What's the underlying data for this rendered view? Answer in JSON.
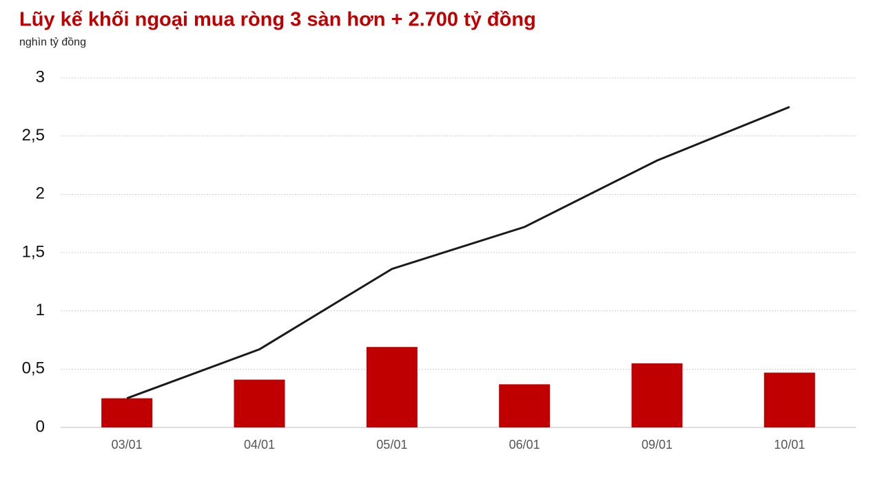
{
  "chart_data": {
    "type": "combo",
    "title": "Lũy kế khối ngoại mua ròng 3 sàn hơn + 2.700 tỷ đồng",
    "subtitle": "nghìn tỷ đồng",
    "categories": [
      "03/01",
      "04/01",
      "05/01",
      "06/01",
      "09/01",
      "10/01"
    ],
    "series": [
      {
        "type": "bar",
        "color": "#c00000",
        "values": [
          0.25,
          0.41,
          0.69,
          0.37,
          0.55,
          0.47
        ]
      },
      {
        "type": "line",
        "color": "#1a1a1a",
        "values": [
          0.25,
          0.67,
          1.36,
          1.72,
          2.29,
          2.75
        ]
      }
    ],
    "ylim": [
      0,
      3
    ],
    "yticks": [
      0,
      {
        "value": 0.5,
        "label": "0,5"
      },
      1,
      {
        "value": 1.5,
        "label": "1,5"
      },
      2,
      {
        "value": 2.5,
        "label": "2,5"
      },
      3
    ],
    "grid": true
  }
}
